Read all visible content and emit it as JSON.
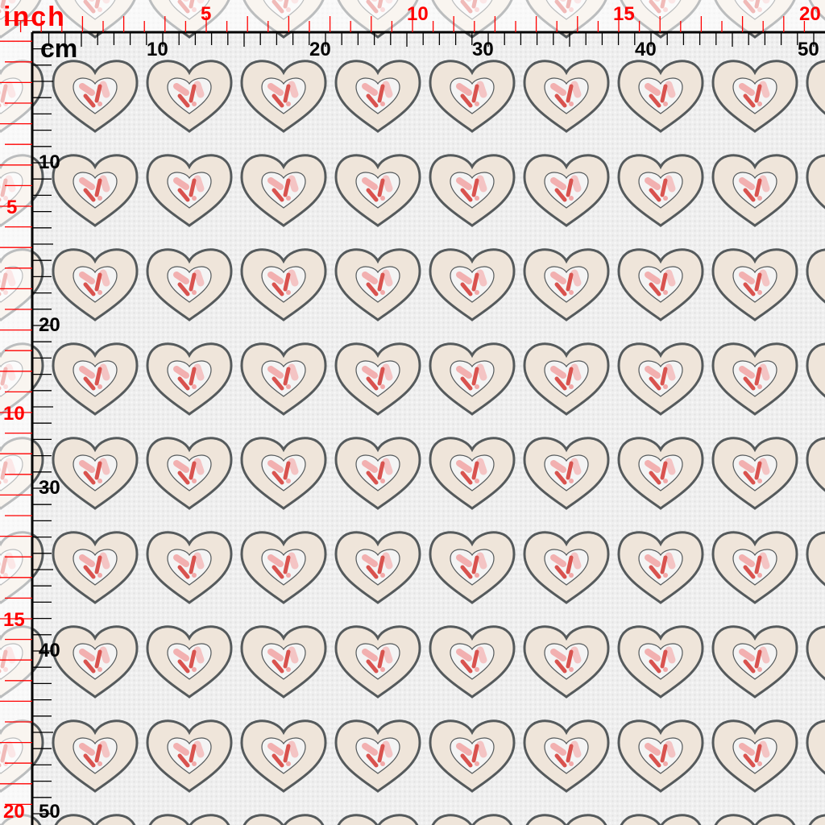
{
  "rulers": {
    "inch_unit": "inch",
    "cm_unit": "cm",
    "inch_top_labels": [
      "5",
      "10",
      "15",
      "20"
    ],
    "cm_top_labels": [
      "10",
      "20",
      "30",
      "40",
      "50"
    ],
    "inch_left_labels": [
      "5",
      "10",
      "15",
      "20"
    ],
    "cm_left_labels": [
      "10",
      "20",
      "30",
      "40",
      "50"
    ],
    "inch_color": "#ff0000",
    "cm_color": "#000000"
  },
  "pattern": {
    "motif": "heart",
    "outer_fill": "#efe5da",
    "outline": "#555a5c",
    "inner_fill": "#f4f4f4",
    "accent_dark": "#d9534f",
    "accent_light": "#f2a9a9",
    "background": "#efefef"
  }
}
